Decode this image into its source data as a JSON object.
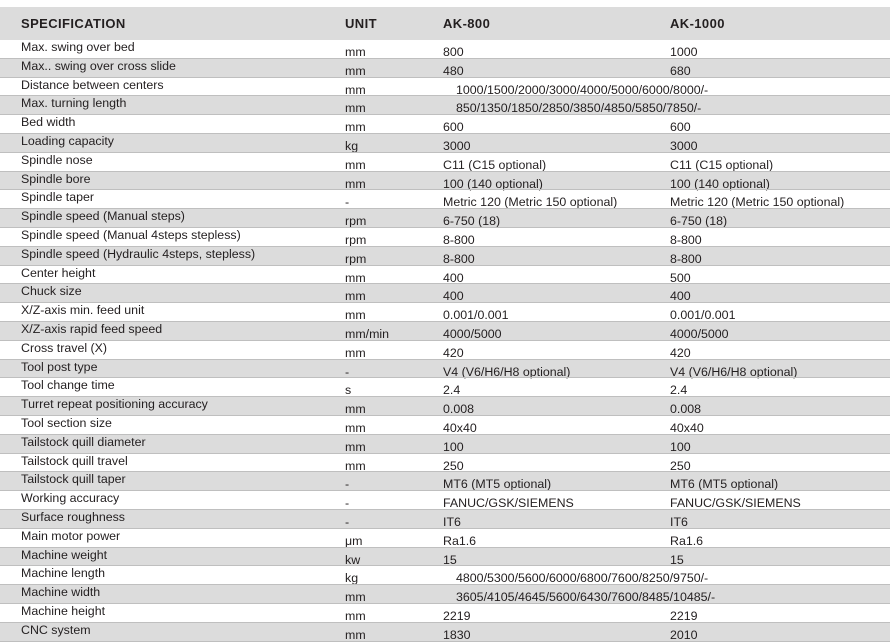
{
  "header": {
    "spec": "SPECIFICATION",
    "unit": "UNIT",
    "model_a": "AK-800",
    "model_b": "AK-1000"
  },
  "rows": [
    {
      "spec": "Max. swing over bed",
      "unit": "mm",
      "a": "800",
      "b": "1000"
    },
    {
      "spec": "Max.. swing over cross slide",
      "unit": "mm",
      "a": "480",
      "b": "680"
    },
    {
      "spec": "Distance between centers",
      "unit": "mm",
      "span": "1000/1500/2000/3000/4000/5000/6000/8000/-"
    },
    {
      "spec": "Max. turning length",
      "unit": "mm",
      "span": "850/1350/1850/2850/3850/4850/5850/7850/-"
    },
    {
      "spec": "Bed width",
      "unit": "mm",
      "a": "600",
      "b": "600"
    },
    {
      "spec": "Loading capacity",
      "unit": "kg",
      "a": "3000",
      "b": "3000"
    },
    {
      "spec": "Spindle nose",
      "unit": "mm",
      "a": "C11 (C15 optional)",
      "b": "C11 (C15 optional)"
    },
    {
      "spec": "Spindle bore",
      "unit": "mm",
      "a": "100 (140 optional)",
      "b": "100 (140 optional)"
    },
    {
      "spec": "Spindle taper",
      "unit": "-",
      "a": "Metric 120 (Metric 150 optional)",
      "b": "Metric 120 (Metric 150 optional)"
    },
    {
      "spec": "Spindle speed (Manual steps)",
      "unit": "rpm",
      "a": "6-750 (18)",
      "b": "6-750 (18)"
    },
    {
      "spec": "Spindle speed (Manual 4steps stepless)",
      "unit": "rpm",
      "a": "8-800",
      "b": "8-800"
    },
    {
      "spec": "Spindle speed (Hydraulic 4steps, stepless)",
      "unit": "rpm",
      "a": "8-800",
      "b": "8-800"
    },
    {
      "spec": "Center height",
      "unit": "mm",
      "a": "400",
      "b": "500"
    },
    {
      "spec": "Chuck size",
      "unit": "mm",
      "a": "400",
      "b": "400"
    },
    {
      "spec": "X/Z-axis min. feed unit",
      "unit": "mm",
      "a": "0.001/0.001",
      "b": "0.001/0.001"
    },
    {
      "spec": "X/Z-axis rapid feed speed",
      "unit": "mm/min",
      "a": "4000/5000",
      "b": "4000/5000"
    },
    {
      "spec": "Cross travel (X)",
      "unit": "mm",
      "a": "420",
      "b": "420"
    },
    {
      "spec": "Tool post type",
      "unit": "-",
      "a": "V4 (V6/H6/H8 optional)",
      "b": "V4 (V6/H6/H8 optional)"
    },
    {
      "spec": "Tool change time",
      "unit": "s",
      "a": "2.4",
      "b": "2.4"
    },
    {
      "spec": "Turret repeat positioning accuracy",
      "unit": "mm",
      "a": "0.008",
      "b": "0.008"
    },
    {
      "spec": "Tool section size",
      "unit": "mm",
      "a": "40x40",
      "b": "40x40"
    },
    {
      "spec": "Tailstock quill diameter",
      "unit": "mm",
      "a": "100",
      "b": "100"
    },
    {
      "spec": "Tailstock quill travel",
      "unit": "mm",
      "a": "250",
      "b": "250"
    },
    {
      "spec": "Tailstock quill taper",
      "unit": "-",
      "a": "MT6 (MT5 optional)",
      "b": "MT6 (MT5 optional)"
    },
    {
      "spec": "Working accuracy",
      "unit": "-",
      "a": "FANUC/GSK/SIEMENS",
      "b": "FANUC/GSK/SIEMENS"
    },
    {
      "spec": "Surface roughness",
      "unit": "-",
      "a": "IT6",
      "b": "IT6"
    },
    {
      "spec": "Main motor power",
      "unit": "μm",
      "a": "Ra1.6",
      "b": "Ra1.6"
    },
    {
      "spec": "Machine weight",
      "unit": "kw",
      "a": "15",
      "b": "15"
    },
    {
      "spec": "Machine length",
      "unit": "kg",
      "span": "4800/5300/5600/6000/6800/7600/8250/9750/-"
    },
    {
      "spec": "Machine width",
      "unit": "mm",
      "span": "3605/4105/4645/5600/6430/7600/8485/10485/-"
    },
    {
      "spec": "Machine height",
      "unit": "mm",
      "a": "2219",
      "b": "2219"
    },
    {
      "spec": "CNC system",
      "unit": "mm",
      "a": "1830",
      "b": "2010"
    }
  ]
}
